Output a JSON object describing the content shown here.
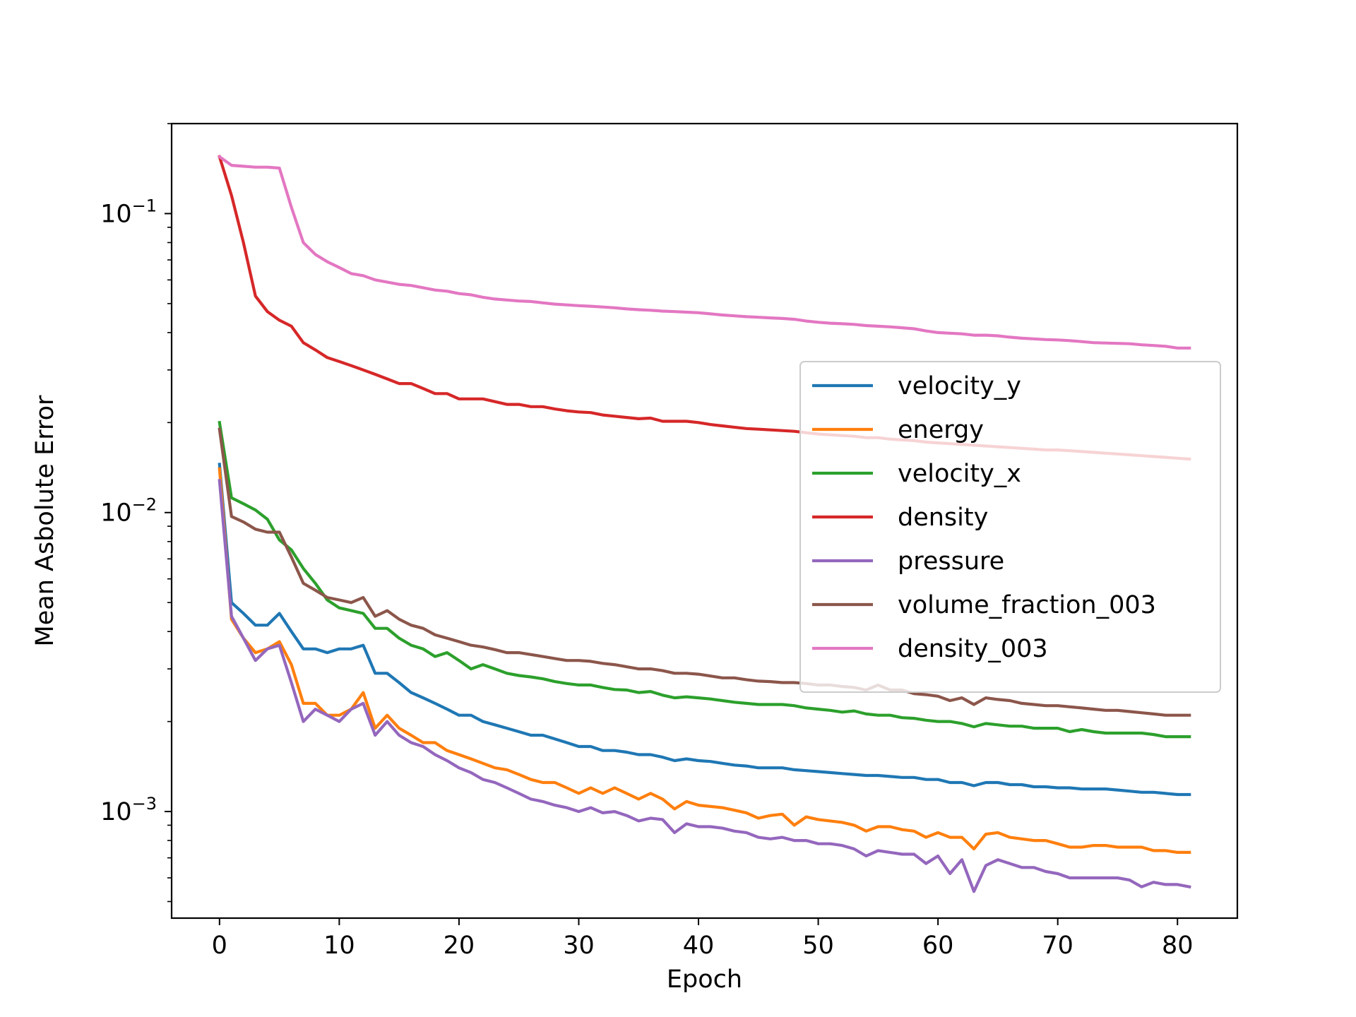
{
  "chart_data": {
    "type": "line",
    "title": "",
    "xlabel": "Epoch",
    "ylabel": "Mean Asbolute Error",
    "xscale": "linear",
    "yscale": "log",
    "xlim": [
      -4,
      85
    ],
    "ylim": [
      0.00044,
      0.2
    ],
    "xticks": [
      0,
      10,
      20,
      30,
      40,
      50,
      60,
      70,
      80
    ],
    "xtick_labels": [
      "0",
      "10",
      "20",
      "30",
      "40",
      "50",
      "60",
      "70",
      "80"
    ],
    "yticks": [
      {
        "value": 0.1,
        "base": "10",
        "exp": "−1"
      },
      {
        "value": 0.01,
        "base": "10",
        "exp": "−2"
      },
      {
        "value": 0.001,
        "base": "10",
        "exp": "−3"
      }
    ],
    "grid": false,
    "legend_position": "center-right",
    "x": {
      "start": 0,
      "step": 1,
      "count": 82
    },
    "series": [
      {
        "name": "velocity_y",
        "color": "#1f77b4",
        "values": [
          0.0145,
          0.005,
          0.0046,
          0.0042,
          0.0042,
          0.0046,
          0.004,
          0.0035,
          0.0035,
          0.0034,
          0.0035,
          0.0035,
          0.0036,
          0.0029,
          0.0029,
          0.0027,
          0.0025,
          0.0024,
          0.0023,
          0.0022,
          0.0021,
          0.0021,
          0.002,
          0.00195,
          0.0019,
          0.00185,
          0.0018,
          0.0018,
          0.00175,
          0.0017,
          0.00165,
          0.00165,
          0.0016,
          0.0016,
          0.00158,
          0.00155,
          0.00155,
          0.00152,
          0.00148,
          0.0015,
          0.00148,
          0.00147,
          0.00145,
          0.00143,
          0.00142,
          0.0014,
          0.0014,
          0.0014,
          0.00138,
          0.00137,
          0.00136,
          0.00135,
          0.00134,
          0.00133,
          0.00132,
          0.00132,
          0.00131,
          0.0013,
          0.0013,
          0.00128,
          0.00128,
          0.00125,
          0.00125,
          0.00122,
          0.00125,
          0.00125,
          0.00123,
          0.00123,
          0.00121,
          0.00121,
          0.0012,
          0.0012,
          0.00119,
          0.00119,
          0.00119,
          0.00118,
          0.00117,
          0.00116,
          0.00116,
          0.00115,
          0.00114,
          0.00114
        ]
      },
      {
        "name": "energy",
        "color": "#ff7f0e",
        "values": [
          0.014,
          0.0044,
          0.0038,
          0.0034,
          0.0035,
          0.0037,
          0.0031,
          0.0023,
          0.0023,
          0.0021,
          0.0021,
          0.0022,
          0.0025,
          0.0019,
          0.0021,
          0.0019,
          0.0018,
          0.0017,
          0.0017,
          0.0016,
          0.00155,
          0.0015,
          0.00145,
          0.0014,
          0.00138,
          0.00133,
          0.00128,
          0.00125,
          0.00125,
          0.0012,
          0.00115,
          0.0012,
          0.00115,
          0.0012,
          0.00115,
          0.0011,
          0.00115,
          0.0011,
          0.00102,
          0.00108,
          0.00105,
          0.00104,
          0.00103,
          0.00101,
          0.00099,
          0.00095,
          0.00097,
          0.00098,
          0.0009,
          0.00096,
          0.00094,
          0.00093,
          0.00092,
          0.0009,
          0.00086,
          0.00089,
          0.00089,
          0.00087,
          0.00086,
          0.00082,
          0.00085,
          0.00082,
          0.00082,
          0.00075,
          0.00084,
          0.00085,
          0.00082,
          0.00081,
          0.0008,
          0.0008,
          0.00078,
          0.00076,
          0.00076,
          0.00077,
          0.00077,
          0.00076,
          0.00076,
          0.00076,
          0.00074,
          0.00074,
          0.00073,
          0.00073
        ]
      },
      {
        "name": "velocity_x",
        "color": "#2ca02c",
        "values": [
          0.02,
          0.0112,
          0.0107,
          0.0102,
          0.0095,
          0.0081,
          0.0075,
          0.0065,
          0.0058,
          0.0051,
          0.0048,
          0.0047,
          0.0046,
          0.0041,
          0.0041,
          0.0038,
          0.0036,
          0.0035,
          0.0033,
          0.0034,
          0.0032,
          0.003,
          0.0031,
          0.003,
          0.0029,
          0.00285,
          0.00282,
          0.00278,
          0.00272,
          0.00268,
          0.00265,
          0.00265,
          0.0026,
          0.00256,
          0.00255,
          0.0025,
          0.00252,
          0.00245,
          0.0024,
          0.00242,
          0.0024,
          0.00238,
          0.00235,
          0.00232,
          0.0023,
          0.00228,
          0.00228,
          0.00228,
          0.00226,
          0.00222,
          0.0022,
          0.00218,
          0.00215,
          0.00217,
          0.00212,
          0.0021,
          0.0021,
          0.00206,
          0.00205,
          0.00202,
          0.002,
          0.002,
          0.00197,
          0.00192,
          0.00197,
          0.00195,
          0.00193,
          0.00193,
          0.0019,
          0.0019,
          0.0019,
          0.00185,
          0.00188,
          0.00185,
          0.00183,
          0.00183,
          0.00183,
          0.00183,
          0.00181,
          0.00178,
          0.00178,
          0.00178
        ]
      },
      {
        "name": "density",
        "color": "#d62728",
        "values": [
          0.155,
          0.115,
          0.08,
          0.053,
          0.047,
          0.044,
          0.042,
          0.037,
          0.035,
          0.033,
          0.032,
          0.031,
          0.03,
          0.029,
          0.028,
          0.027,
          0.027,
          0.026,
          0.025,
          0.025,
          0.024,
          0.024,
          0.024,
          0.0235,
          0.023,
          0.023,
          0.0226,
          0.0226,
          0.0222,
          0.0219,
          0.0217,
          0.0216,
          0.0212,
          0.021,
          0.0208,
          0.0206,
          0.0207,
          0.0202,
          0.0202,
          0.0202,
          0.02,
          0.0197,
          0.0195,
          0.0193,
          0.0191,
          0.019,
          0.0189,
          0.0188,
          0.0187,
          0.0185,
          0.0183,
          0.0182,
          0.0181,
          0.018,
          0.0178,
          0.0178,
          0.0176,
          0.0175,
          0.0174,
          0.0172,
          0.0171,
          0.017,
          0.0169,
          0.0168,
          0.0167,
          0.0166,
          0.0165,
          0.0164,
          0.0163,
          0.0162,
          0.0162,
          0.0161,
          0.016,
          0.0159,
          0.0158,
          0.0157,
          0.0156,
          0.0155,
          0.0154,
          0.0153,
          0.0152,
          0.0151
        ]
      },
      {
        "name": "pressure",
        "color": "#9467bd",
        "values": [
          0.0128,
          0.0045,
          0.0038,
          0.0032,
          0.0035,
          0.0036,
          0.0027,
          0.002,
          0.0022,
          0.0021,
          0.002,
          0.0022,
          0.0023,
          0.0018,
          0.002,
          0.0018,
          0.0017,
          0.00165,
          0.00155,
          0.00148,
          0.0014,
          0.00135,
          0.00128,
          0.00125,
          0.0012,
          0.00115,
          0.0011,
          0.00108,
          0.00105,
          0.00103,
          0.001,
          0.00103,
          0.00099,
          0.001,
          0.00097,
          0.00093,
          0.00095,
          0.00094,
          0.00085,
          0.00091,
          0.00089,
          0.00089,
          0.00088,
          0.00086,
          0.00085,
          0.00082,
          0.00081,
          0.00082,
          0.0008,
          0.0008,
          0.00078,
          0.00078,
          0.00077,
          0.00075,
          0.00071,
          0.00074,
          0.00073,
          0.00072,
          0.00072,
          0.00067,
          0.00071,
          0.00062,
          0.00069,
          0.00054,
          0.00066,
          0.00069,
          0.00067,
          0.00065,
          0.00065,
          0.00063,
          0.00062,
          0.0006,
          0.0006,
          0.0006,
          0.0006,
          0.0006,
          0.00059,
          0.00056,
          0.00058,
          0.00057,
          0.00057,
          0.00056
        ]
      },
      {
        "name": "volume_fraction_003",
        "color": "#8c564b",
        "values": [
          0.019,
          0.0097,
          0.0093,
          0.0088,
          0.0086,
          0.0086,
          0.0071,
          0.0058,
          0.0055,
          0.0052,
          0.0051,
          0.005,
          0.0052,
          0.0045,
          0.0047,
          0.0044,
          0.0042,
          0.0041,
          0.0039,
          0.0038,
          0.0037,
          0.0036,
          0.00355,
          0.00348,
          0.0034,
          0.0034,
          0.00335,
          0.0033,
          0.00325,
          0.0032,
          0.0032,
          0.00318,
          0.00313,
          0.0031,
          0.00305,
          0.003,
          0.003,
          0.00296,
          0.0029,
          0.0029,
          0.00288,
          0.00284,
          0.0028,
          0.0028,
          0.00276,
          0.00273,
          0.00272,
          0.0027,
          0.0027,
          0.00268,
          0.00265,
          0.00265,
          0.00262,
          0.0026,
          0.00255,
          0.00265,
          0.00255,
          0.00255,
          0.00248,
          0.00246,
          0.00243,
          0.00235,
          0.0024,
          0.00228,
          0.0024,
          0.00237,
          0.00235,
          0.0023,
          0.00228,
          0.00226,
          0.00226,
          0.00224,
          0.00222,
          0.0022,
          0.00218,
          0.00218,
          0.00216,
          0.00214,
          0.00212,
          0.0021,
          0.0021,
          0.0021
        ]
      },
      {
        "name": "density_003",
        "color": "#e377c2",
        "values": [
          0.155,
          0.145,
          0.144,
          0.143,
          0.143,
          0.142,
          0.105,
          0.08,
          0.073,
          0.069,
          0.066,
          0.063,
          0.062,
          0.06,
          0.059,
          0.058,
          0.0575,
          0.0565,
          0.0555,
          0.055,
          0.054,
          0.0535,
          0.0525,
          0.0518,
          0.0514,
          0.051,
          0.0508,
          0.0503,
          0.0498,
          0.0495,
          0.0492,
          0.049,
          0.0487,
          0.0484,
          0.048,
          0.0477,
          0.0475,
          0.0472,
          0.047,
          0.0468,
          0.0466,
          0.0462,
          0.0458,
          0.0455,
          0.0452,
          0.045,
          0.0448,
          0.0446,
          0.0443,
          0.0437,
          0.0433,
          0.043,
          0.0428,
          0.0426,
          0.0422,
          0.042,
          0.0418,
          0.0415,
          0.0412,
          0.0405,
          0.04,
          0.0398,
          0.0396,
          0.0392,
          0.0392,
          0.039,
          0.0386,
          0.0383,
          0.0381,
          0.0379,
          0.0378,
          0.0376,
          0.0373,
          0.037,
          0.0369,
          0.0368,
          0.0367,
          0.0364,
          0.0362,
          0.036,
          0.0355,
          0.0355
        ]
      }
    ]
  }
}
